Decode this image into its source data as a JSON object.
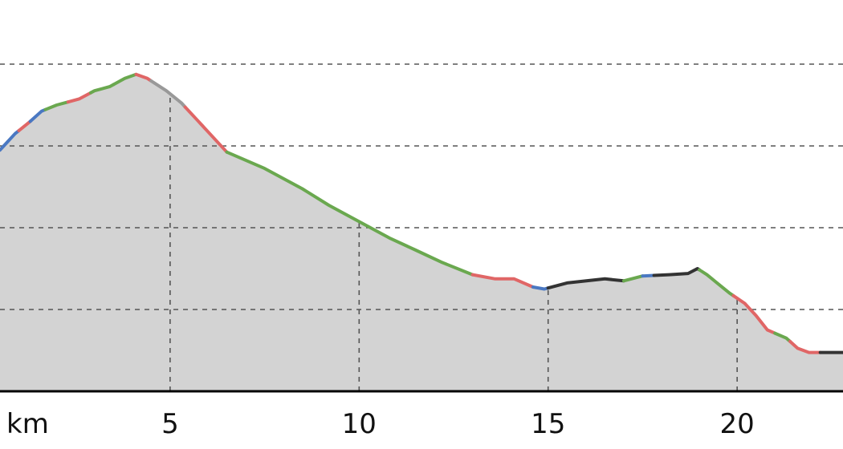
{
  "chart_data": {
    "type": "area",
    "title": "",
    "xlabel": "km",
    "ylabel": "",
    "x_unit": "km",
    "xlim": [
      0.5,
      22.8
    ],
    "ylim": [
      0,
      8
    ],
    "x_ticks": [
      5,
      10,
      15,
      20
    ],
    "x_tick_labels": [
      "5",
      "10",
      "15",
      "20"
    ],
    "y_gridlines": [
      2,
      4,
      6,
      8
    ],
    "grid": true,
    "fill_color": "#d3d3d3",
    "segment_colors": {
      "red": "#e06666",
      "green": "#6aa84f",
      "blue": "#4a78c2",
      "black": "#333333",
      "gray": "#999999"
    },
    "series": [
      {
        "points": [
          [
            0.5,
            5.9
          ],
          [
            0.9,
            6.3
          ],
          [
            1.3,
            6.6
          ],
          [
            1.6,
            6.85
          ],
          [
            2.0,
            7.0
          ],
          [
            2.6,
            7.15
          ],
          [
            3.0,
            7.35
          ],
          [
            3.4,
            7.45
          ],
          [
            3.8,
            7.65
          ],
          [
            4.1,
            7.75
          ],
          [
            4.4,
            7.65
          ],
          [
            4.9,
            7.35
          ],
          [
            5.3,
            7.05
          ],
          [
            5.7,
            6.65
          ],
          [
            6.1,
            6.25
          ],
          [
            6.5,
            5.85
          ],
          [
            7.5,
            5.45
          ],
          [
            8.5,
            4.95
          ],
          [
            9.2,
            4.55
          ],
          [
            10.0,
            4.15
          ],
          [
            10.8,
            3.75
          ],
          [
            11.5,
            3.45
          ],
          [
            12.2,
            3.15
          ],
          [
            13.0,
            2.85
          ],
          [
            13.6,
            2.75
          ],
          [
            14.1,
            2.75
          ],
          [
            14.6,
            2.55
          ],
          [
            14.9,
            2.5
          ],
          [
            15.5,
            2.65
          ],
          [
            16.5,
            2.75
          ],
          [
            17.0,
            2.7
          ],
          [
            17.5,
            2.82
          ],
          [
            18.2,
            2.85
          ],
          [
            18.7,
            2.88
          ],
          [
            18.95,
            3.0
          ],
          [
            19.2,
            2.85
          ],
          [
            19.8,
            2.4
          ],
          [
            20.2,
            2.15
          ],
          [
            20.5,
            1.85
          ],
          [
            20.8,
            1.5
          ],
          [
            21.3,
            1.3
          ],
          [
            21.6,
            1.05
          ],
          [
            21.9,
            0.95
          ],
          [
            22.3,
            0.95
          ],
          [
            22.8,
            0.95
          ]
        ],
        "segments": [
          {
            "from_km": 0.5,
            "to_km": 1.0,
            "color": "blue"
          },
          {
            "from_km": 1.0,
            "to_km": 1.3,
            "color": "red"
          },
          {
            "from_km": 1.3,
            "to_km": 1.7,
            "color": "blue"
          },
          {
            "from_km": 1.7,
            "to_km": 2.3,
            "color": "green"
          },
          {
            "from_km": 2.3,
            "to_km": 2.9,
            "color": "red"
          },
          {
            "from_km": 2.9,
            "to_km": 3.5,
            "color": "green"
          },
          {
            "from_km": 3.5,
            "to_km": 4.1,
            "color": "green"
          },
          {
            "from_km": 4.1,
            "to_km": 4.5,
            "color": "red"
          },
          {
            "from_km": 4.5,
            "to_km": 5.4,
            "color": "gray"
          },
          {
            "from_km": 5.4,
            "to_km": 6.5,
            "color": "red"
          },
          {
            "from_km": 6.5,
            "to_km": 12.3,
            "color": "green"
          },
          {
            "from_km": 12.3,
            "to_km": 13.0,
            "color": "green"
          },
          {
            "from_km": 13.0,
            "to_km": 14.6,
            "color": "red"
          },
          {
            "from_km": 14.6,
            "to_km": 15.0,
            "color": "blue"
          },
          {
            "from_km": 15.0,
            "to_km": 17.0,
            "color": "black"
          },
          {
            "from_km": 17.0,
            "to_km": 17.5,
            "color": "green"
          },
          {
            "from_km": 17.5,
            "to_km": 17.8,
            "color": "blue"
          },
          {
            "from_km": 17.8,
            "to_km": 19.0,
            "color": "black"
          },
          {
            "from_km": 19.0,
            "to_km": 19.9,
            "color": "green"
          },
          {
            "from_km": 19.9,
            "to_km": 21.0,
            "color": "red"
          },
          {
            "from_km": 21.0,
            "to_km": 21.4,
            "color": "green"
          },
          {
            "from_km": 21.4,
            "to_km": 22.2,
            "color": "red"
          },
          {
            "from_km": 22.2,
            "to_km": 22.8,
            "color": "black"
          }
        ]
      }
    ]
  }
}
